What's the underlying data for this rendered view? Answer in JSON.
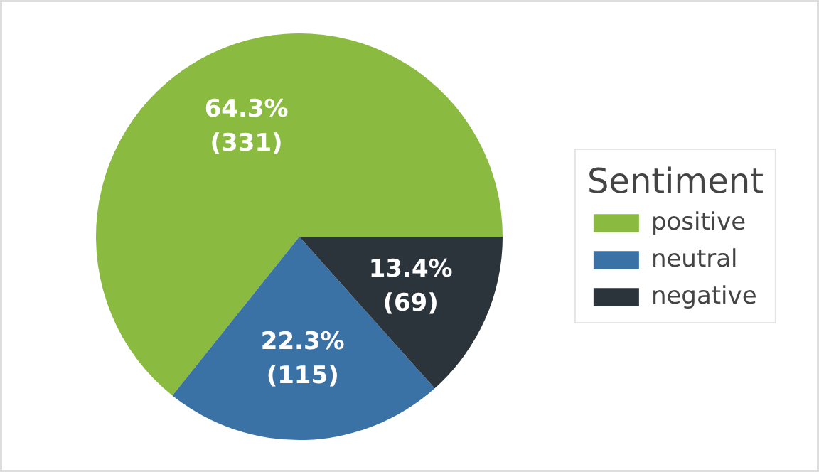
{
  "chart_data": {
    "type": "pie",
    "legend_title": "Sentiment",
    "legend": "right",
    "categories": [
      "positive",
      "neutral",
      "negative"
    ],
    "values": [
      331,
      115,
      69
    ],
    "colors": [
      "#8aba40",
      "#3b72a6",
      "#2b333b"
    ],
    "value_labels": [
      "64.3%\n(331)",
      "22.3%\n(115)",
      "13.4%\n(69)"
    ]
  }
}
